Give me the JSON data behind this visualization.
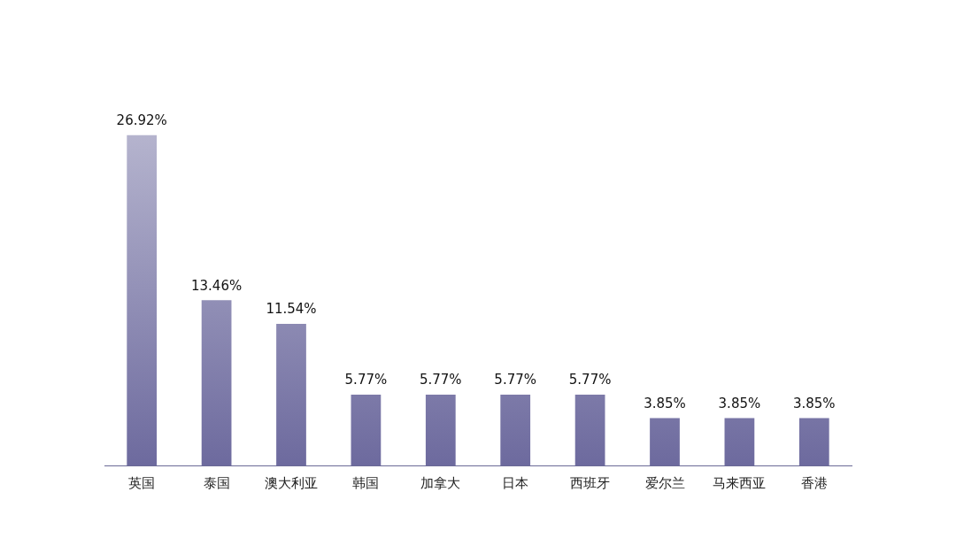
{
  "chart_data": {
    "type": "bar",
    "categories": [
      "英国",
      "泰国",
      "澳大利亚",
      "韩国",
      "加拿大",
      "日本",
      "西班牙",
      "爱尔兰",
      "马来西亚",
      "香港"
    ],
    "values": [
      26.92,
      13.46,
      11.54,
      5.77,
      5.77,
      5.77,
      5.77,
      3.85,
      3.85,
      3.85
    ],
    "value_labels": [
      "26.92%",
      "13.46%",
      "11.54%",
      "5.77%",
      "5.77%",
      "5.77%",
      "5.77%",
      "3.85%",
      "3.85%",
      "3.85%"
    ],
    "color": "#6d6a9e",
    "grid": false,
    "legend": false
  }
}
